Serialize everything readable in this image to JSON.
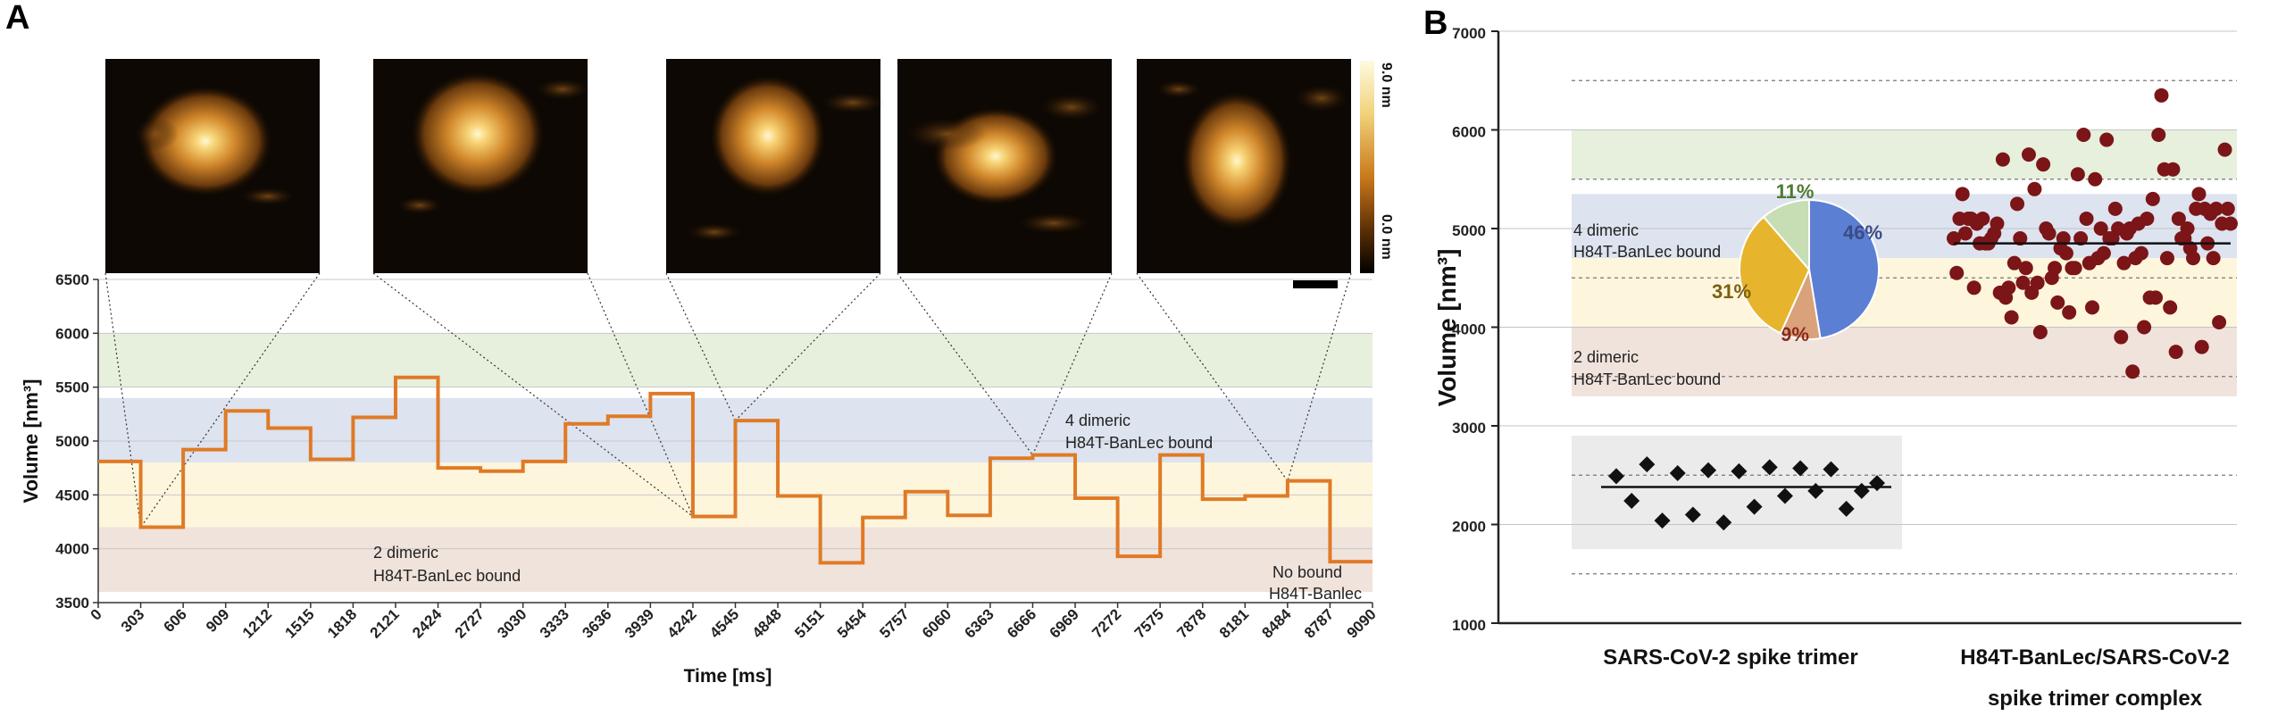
{
  "panel_a": {
    "label": "A",
    "colorbar": {
      "max_label": "9.0 nm",
      "min_label": "0.0 nm"
    }
  },
  "panel_b": {
    "label": "B"
  },
  "colors": {
    "trace": "#E07A26",
    "band_green": "#E6F0DC",
    "band_blue": "#DDE3EF",
    "band_yellow": "#FDF6DC",
    "band_pink": "#F0E3DC",
    "band_gray": "#EBEBEB",
    "scatter_red": "#7B1518",
    "diamond": "#111111",
    "pie_blue": "#5B7FD3",
    "pie_brown": "#D9A27B",
    "pie_gold": "#E6B52D",
    "pie_green": "#C7DDB3"
  },
  "chart_data": [
    {
      "type": "line",
      "panel": "A",
      "xlabel": "Time [ms]",
      "ylabel": "Volume [nm³]",
      "xlim": [
        0,
        9090
      ],
      "ylim": [
        3500,
        6500
      ],
      "x_ticks": [
        0,
        303,
        606,
        909,
        1212,
        1515,
        1818,
        2121,
        2424,
        2727,
        3030,
        3333,
        3636,
        3939,
        4242,
        4545,
        4848,
        5151,
        5454,
        5757,
        6060,
        6363,
        6666,
        6969,
        7272,
        7575,
        7878,
        8181,
        8484,
        8787,
        9090
      ],
      "y_ticks": [
        3500,
        4000,
        4500,
        5000,
        5500,
        6000,
        6500
      ],
      "steps_x": [
        0,
        303,
        606,
        909,
        1212,
        1515,
        1818,
        2121,
        2424,
        2727,
        3030,
        3333,
        3636,
        3939,
        4242,
        4545,
        4848,
        5151,
        5454,
        5757,
        6060,
        6363,
        6666,
        6969,
        7272,
        7575,
        7878,
        8181,
        8484,
        8787
      ],
      "steps_y": [
        4810,
        4200,
        4920,
        5280,
        5120,
        4830,
        5220,
        5590,
        4750,
        4720,
        4810,
        5160,
        5230,
        5440,
        4300,
        5190,
        4490,
        3870,
        4290,
        4530,
        4310,
        4840,
        4870,
        4470,
        3930,
        4870,
        4460,
        4490,
        4630,
        3880
      ],
      "bands": [
        {
          "from": 5500,
          "to": 6000,
          "color": "green"
        },
        {
          "from": 4800,
          "to": 5400,
          "color": "blue"
        },
        {
          "from": 4200,
          "to": 4800,
          "color": "yellow"
        },
        {
          "from": 3600,
          "to": 4200,
          "color": "pink"
        }
      ],
      "annotations": [
        {
          "line1": "4 dimeric",
          "line2": "H84T-BanLec bound"
        },
        {
          "line1": "2 dimeric",
          "line2": "H84T-BanLec bound"
        },
        {
          "line1": "No bound",
          "line2": "H84T-Banlec"
        }
      ],
      "image_frame_times": [
        303,
        4242,
        4545,
        6666,
        8484
      ]
    },
    {
      "type": "scatter",
      "panel": "B",
      "ylabel": "Volume [nm³]",
      "ylim": [
        1000,
        7000
      ],
      "y_ticks": [
        1000,
        2000,
        3000,
        4000,
        5000,
        6000,
        7000
      ],
      "categories": [
        "SARS-CoV-2 spike trimer",
        "H84T-BanLec/SARS-CoV-2 spike trimer complex"
      ],
      "category_label_lines": [
        [
          "SARS-CoV-2 spike trimer"
        ],
        [
          "H84T-BanLec/SARS-CoV-2",
          "spike trimer complex"
        ]
      ],
      "dashed_levels": [
        1500,
        2500,
        3500,
        4500,
        5500,
        6500
      ],
      "bands": [
        {
          "from": 5500,
          "to": 6000,
          "color": "green"
        },
        {
          "from": 4700,
          "to": 5350,
          "color": "blue"
        },
        {
          "from": 4000,
          "to": 4700,
          "color": "yellow"
        },
        {
          "from": 3300,
          "to": 4000,
          "color": "pink"
        },
        {
          "from": 1750,
          "to": 2900,
          "color": "gray"
        }
      ],
      "annotations": [
        {
          "line1": "4 dimeric",
          "line2": "H84T-BanLec bound"
        },
        {
          "line1": "2 dimeric",
          "line2": "H84T-BanLec bound"
        }
      ],
      "series": [
        {
          "category": "SARS-CoV-2 spike trimer",
          "marker": "diamond",
          "mean": 2380,
          "values": [
            2490,
            2240,
            2610,
            2040,
            2520,
            2100,
            2550,
            2020,
            2540,
            2180,
            2580,
            2290,
            2570,
            2340,
            2560,
            2160,
            2340,
            2420
          ]
        },
        {
          "category": "H84T-BanLec/SARS-CoV-2 spike trimer complex",
          "marker": "circle",
          "mean": 4850,
          "values": [
            4900,
            4800,
            4700,
            4950,
            5000,
            4850,
            5400,
            4750,
            5100,
            4600,
            4900,
            4400,
            5200,
            5050,
            4950,
            4300,
            5100,
            4650,
            5200,
            4450,
            5000,
            4550,
            4900,
            4200,
            5050,
            4750,
            5150,
            4450,
            4000,
            5100,
            5550,
            4900,
            4100,
            5000,
            5800,
            4500,
            5950,
            4850,
            4200,
            5350,
            4600,
            3550,
            5100,
            4750,
            5600,
            4350,
            5900,
            4700,
            3950,
            5100,
            4400,
            4900,
            5000,
            4650,
            3900,
            5200,
            4600,
            6350,
            4850,
            5500,
            3800,
            5750,
            4700,
            5350,
            4150,
            3750,
            5700,
            4900,
            5200,
            5650,
            4300,
            5050,
            5950,
            4800,
            5250,
            4650,
            5050,
            4250,
            5600,
            4900,
            4700,
            5200,
            4350,
            5050,
            4950,
            4600,
            5100,
            4300,
            4900,
            4050,
            5000,
            5300,
            4850,
            5100,
            4700,
            4900,
            4950
          ]
        }
      ],
      "inset_pie": {
        "slices": [
          {
            "label": "46%",
            "value": 46,
            "color": "blue"
          },
          {
            "label": "9%",
            "value": 9,
            "color": "brown"
          },
          {
            "label": "31%",
            "value": 31,
            "color": "gold"
          },
          {
            "label": "11%",
            "value": 11,
            "color": "green"
          }
        ]
      }
    }
  ]
}
